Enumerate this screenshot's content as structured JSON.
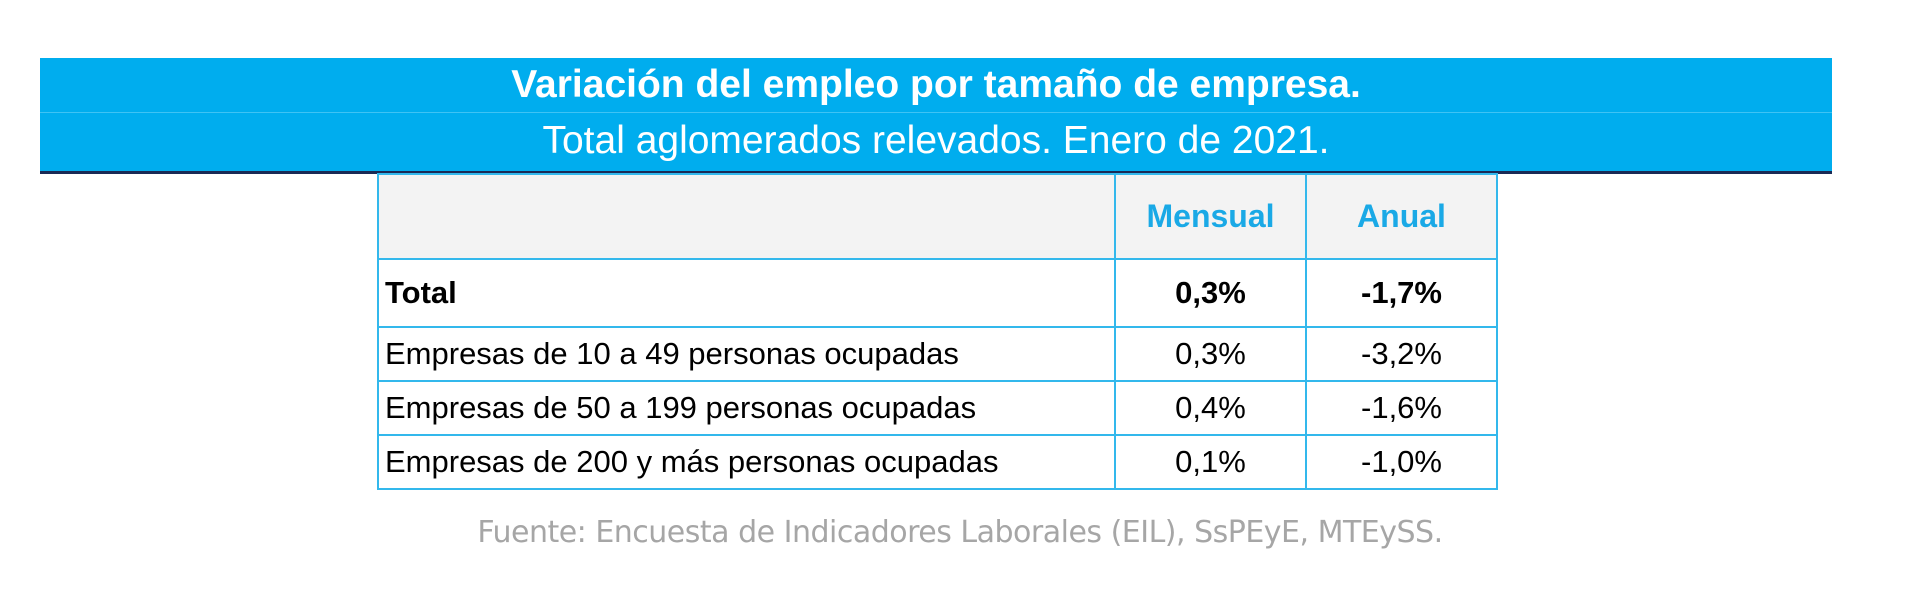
{
  "header": {
    "title": "Variación del empleo por tamaño de empresa.",
    "subtitle": "Total aglomerados relevados. Enero de 2021."
  },
  "table": {
    "columns": [
      "",
      "Mensual",
      "Anual"
    ],
    "total": {
      "label": "Total",
      "mensual": "0,3%",
      "anual": "-1,7%"
    },
    "rows": [
      {
        "label": "Empresas de 10 a 49 personas ocupadas",
        "mensual": "0,3%",
        "anual": "-3,2%"
      },
      {
        "label": "Empresas de 50 a 199 personas ocupadas",
        "mensual": "0,4%",
        "anual": "-1,6%"
      },
      {
        "label": "Empresas de 200 y más personas ocupadas",
        "mensual": "0,1%",
        "anual": "-1,0%"
      }
    ]
  },
  "footer": {
    "source": "Fuente: Encuesta de Indicadores Laborales (EIL), SsPEyE, MTEySS."
  },
  "colors": {
    "banner": "#00adee",
    "accent_text": "#1aa9e6",
    "grid": "#33b8ec",
    "source_text": "#a6a6a6"
  }
}
